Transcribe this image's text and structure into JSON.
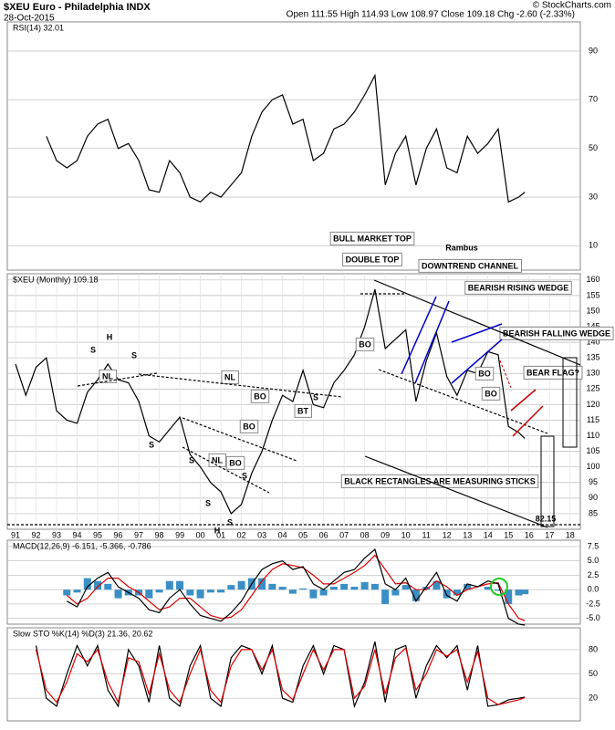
{
  "header": {
    "title": "$XEU Euro - Philadelphia INDX",
    "date": "28-Oct-2015",
    "quote": "Open 111.55  High 114.93  Low 108.97  Close 109.18  Chg -2.60 (-2.33%)",
    "source": "© StockCharts.com"
  },
  "chart_data": [
    {
      "type": "line",
      "title": "RSI(14) 32.01",
      "x": [
        1991,
        1991.5,
        1992,
        1992.5,
        1993,
        1993.5,
        1994,
        1994.5,
        1995,
        1995.5,
        1996,
        1996.5,
        1997,
        1997.5,
        1998,
        1998.5,
        1999,
        1999.5,
        2000,
        2000.5,
        2001,
        2001.5,
        2002,
        2002.5,
        2003,
        2003.5,
        2004,
        2004.5,
        2005,
        2005.5,
        2006,
        2006.5,
        2007,
        2007.5,
        2008,
        2008.5,
        2009,
        2009.5,
        2010,
        2010.5,
        2011,
        2011.5,
        2012,
        2012.5,
        2013,
        2013.5,
        2014,
        2014.5,
        2015,
        2015.5,
        2015.8
      ],
      "xlim": [
        1990.6,
        2018.5
      ],
      "series": [
        {
          "name": "RSI(14)",
          "color": "#000000",
          "values": [
            null,
            null,
            null,
            55,
            45,
            42,
            45,
            55,
            60,
            62,
            50,
            52,
            45,
            33,
            32,
            45,
            40,
            30,
            28,
            32,
            30,
            35,
            40,
            55,
            65,
            70,
            72,
            60,
            62,
            45,
            48,
            58,
            60,
            65,
            72,
            80,
            35,
            48,
            55,
            35,
            50,
            58,
            42,
            40,
            55,
            48,
            52,
            58,
            28,
            30,
            32.01
          ]
        }
      ],
      "ylim": [
        0,
        102
      ],
      "yticks": [
        10,
        30,
        50,
        70,
        90
      ],
      "grid": true
    },
    {
      "type": "line",
      "title": "$XEU (Monthly) 109.18",
      "x": [
        1991,
        1991.5,
        1992,
        1992.5,
        1993,
        1993.5,
        1994,
        1994.5,
        1995,
        1995.5,
        1996,
        1996.5,
        1997,
        1997.5,
        1998,
        1998.5,
        1999,
        1999.5,
        2000,
        2000.5,
        2001,
        2001.5,
        2002,
        2002.5,
        2003,
        2003.5,
        2004,
        2004.5,
        2005,
        2005.5,
        2006,
        2006.5,
        2007,
        2007.5,
        2008,
        2008.5,
        2009,
        2009.5,
        2010,
        2010.5,
        2011,
        2011.5,
        2012,
        2012.5,
        2013,
        2013.5,
        2014,
        2014.5,
        2015,
        2015.5,
        2015.8
      ],
      "xlim": [
        1990.6,
        2018.5
      ],
      "xticks": [
        {
          "value": 1991,
          "label": "91"
        },
        {
          "value": 1992,
          "label": "92"
        },
        {
          "value": 1993,
          "label": "93"
        },
        {
          "value": 1994,
          "label": "94"
        },
        {
          "value": 1995,
          "label": "95"
        },
        {
          "value": 1996,
          "label": "96"
        },
        {
          "value": 1997,
          "label": "97"
        },
        {
          "value": 1998,
          "label": "98"
        },
        {
          "value": 1999,
          "label": "99"
        },
        {
          "value": 2000,
          "label": "00"
        },
        {
          "value": 2001,
          "label": "01"
        },
        {
          "value": 2002,
          "label": "02"
        },
        {
          "value": 2003,
          "label": "03"
        },
        {
          "value": 2004,
          "label": "04"
        },
        {
          "value": 2005,
          "label": "05"
        },
        {
          "value": 2006,
          "label": "06"
        },
        {
          "value": 2007,
          "label": "07"
        },
        {
          "value": 2008,
          "label": "08"
        },
        {
          "value": 2009,
          "label": "09"
        },
        {
          "value": 2010,
          "label": "10"
        },
        {
          "value": 2011,
          "label": "11"
        },
        {
          "value": 2012,
          "label": "12"
        },
        {
          "value": 2013,
          "label": "13"
        },
        {
          "value": 2014,
          "label": "14"
        },
        {
          "value": 2015,
          "label": "15"
        },
        {
          "value": 2016,
          "label": "16"
        },
        {
          "value": 2017,
          "label": "17"
        },
        {
          "value": 2018,
          "label": "18"
        }
      ],
      "series": [
        {
          "name": "$XEU",
          "color": "#000000",
          "values": [
            133,
            123,
            132,
            135,
            118,
            115,
            114,
            124,
            128,
            133,
            128,
            127,
            121,
            110,
            108,
            112,
            116,
            104,
            100,
            95,
            92,
            85,
            88,
            98,
            105,
            115,
            123,
            121,
            131,
            120,
            119,
            127,
            131,
            136,
            145,
            157,
            138,
            141,
            144,
            121,
            134,
            143,
            129,
            123,
            131,
            130,
            137,
            136,
            113,
            111,
            109.18
          ]
        }
      ],
      "ylim": [
        80,
        162
      ],
      "yticks": [
        85,
        90,
        95,
        100,
        105,
        110,
        115,
        120,
        125,
        130,
        135,
        140,
        145,
        150,
        155,
        160
      ],
      "grid": true,
      "annotations": [
        {
          "text": "BULL MARKET TOP",
          "color": "#0000cc"
        },
        {
          "text": "DOUBLE TOP",
          "color": "#000000"
        },
        {
          "text": "Rambus",
          "color": "#000000"
        },
        {
          "text": "DOWNTREND CHANNEL",
          "color": "#000000"
        },
        {
          "text": "BEARISH RISING WEDGE",
          "color": "#0000cc"
        },
        {
          "text": "BEARISH FALLING WEDGE",
          "color": "#cc0000"
        },
        {
          "text": "BEAR FLAG?",
          "color": "#cc0000"
        },
        {
          "text": "BLACK RECTANGLES ARE MEASURING STICKS",
          "color": "#000000"
        },
        {
          "text": "82.15",
          "color": "#000000"
        },
        {
          "text": "H",
          "color": "#000000"
        },
        {
          "text": "S",
          "color": "#000000"
        },
        {
          "text": "S",
          "color": "#000000"
        },
        {
          "text": "NL",
          "color": "#000000"
        },
        {
          "text": "NL",
          "color": "#000000"
        },
        {
          "text": "S",
          "color": "#000000"
        },
        {
          "text": "S",
          "color": "#000000"
        },
        {
          "text": "NL",
          "color": "#000000"
        },
        {
          "text": "S",
          "color": "#000000"
        },
        {
          "text": "H",
          "color": "#000000"
        },
        {
          "text": "S",
          "color": "#000000"
        },
        {
          "text": "S",
          "color": "#000000"
        },
        {
          "text": "BO",
          "color": "#0000cc"
        },
        {
          "text": "BO",
          "color": "#0000cc"
        },
        {
          "text": "BO",
          "color": "#0000cc"
        },
        {
          "text": "BT",
          "color": "#0000cc"
        },
        {
          "text": "BO",
          "color": "#0000cc"
        },
        {
          "text": "BO",
          "color": "#0000cc"
        },
        {
          "text": "BO",
          "color": "#0000cc"
        },
        {
          "text": "S",
          "color": "#000000"
        }
      ]
    },
    {
      "type": "line",
      "title": "MACD(12,26,9) -6.151, -5.366, -0.786",
      "x": [
        1991,
        1991.5,
        1992,
        1992.5,
        1993,
        1993.5,
        1994,
        1994.5,
        1995,
        1995.5,
        1996,
        1996.5,
        1997,
        1997.5,
        1998,
        1998.5,
        1999,
        1999.5,
        2000,
        2000.5,
        2001,
        2001.5,
        2002,
        2002.5,
        2003,
        2003.5,
        2004,
        2004.5,
        2005,
        2005.5,
        2006,
        2006.5,
        2007,
        2007.5,
        2008,
        2008.5,
        2009,
        2009.5,
        2010,
        2010.5,
        2011,
        2011.5,
        2012,
        2012.5,
        2013,
        2013.5,
        2014,
        2014.5,
        2015,
        2015.5,
        2015.8
      ],
      "xlim": [
        1990.6,
        2018.5
      ],
      "series": [
        {
          "name": "Histogram",
          "type": "bar",
          "color": "#3a8fc4",
          "values": [
            null,
            null,
            null,
            null,
            null,
            -1,
            -0.5,
            2,
            1.5,
            1,
            -1.5,
            -1,
            -1,
            -1.5,
            -0.5,
            1.5,
            1.5,
            -1,
            -1.5,
            -0.5,
            -0.5,
            0.8,
            1.5,
            2,
            2,
            1,
            0.5,
            -0.7,
            0.2,
            -1.5,
            -1,
            0.5,
            1,
            0.5,
            1.3,
            1,
            -2.5,
            -1,
            0.8,
            -2,
            0.5,
            1.5,
            -1.5,
            -1,
            1,
            0,
            0.5,
            -0.2,
            -2.5,
            -1,
            -0.786
          ]
        },
        {
          "name": "Signal",
          "color": "#e00000",
          "values": [
            null,
            null,
            null,
            null,
            null,
            -1,
            -2.5,
            -1.5,
            0.5,
            2,
            2,
            0.5,
            -0.5,
            -2,
            -3.5,
            -3,
            -1.5,
            -1.5,
            -3,
            -4.5,
            -5,
            -4.8,
            -3.5,
            -1,
            1.5,
            3.5,
            4.5,
            4.2,
            3.8,
            2.5,
            1,
            1,
            2,
            3,
            4.2,
            6,
            3.5,
            1,
            1.2,
            0,
            0,
            1.5,
            0.5,
            -1,
            0,
            0.5,
            1,
            1.2,
            -2.5,
            -5,
            -5.366
          ]
        },
        {
          "name": "MACD",
          "color": "#000000",
          "values": [
            null,
            null,
            null,
            null,
            null,
            -2,
            -3,
            0.5,
            2,
            3,
            0.5,
            -0.5,
            -1.5,
            -3.5,
            -4,
            -1.5,
            0,
            -2.5,
            -4.5,
            -5,
            -5.5,
            -4,
            -2,
            1,
            3.5,
            4.5,
            5,
            3.5,
            4,
            1,
            0,
            1.5,
            3,
            3.5,
            5.5,
            7,
            1,
            0,
            2,
            -2,
            0.5,
            3,
            -1,
            -2,
            1,
            0.5,
            1.5,
            1,
            -5,
            -6,
            -6.151
          ]
        }
      ],
      "ylim": [
        -6,
        8.6
      ],
      "yticks": [
        {
          "value": 7.5,
          "label": "7.5"
        },
        {
          "value": 5,
          "label": "5.0"
        },
        {
          "value": 2.5,
          "label": "2.5"
        },
        {
          "value": 0,
          "label": "0.0"
        },
        {
          "value": -2.5,
          "label": "-2.5"
        },
        {
          "value": -5,
          "label": "-5.0"
        }
      ],
      "grid": true
    },
    {
      "type": "line",
      "title": "Slow STO %K(14) %D(3) 21.36, 20.62",
      "x": [
        1991,
        1991.5,
        1992,
        1992.5,
        1993,
        1993.5,
        1994,
        1994.5,
        1995,
        1995.5,
        1996,
        1996.5,
        1997,
        1997.5,
        1998,
        1998.5,
        1999,
        1999.5,
        2000,
        2000.5,
        2001,
        2001.5,
        2002,
        2002.5,
        2003,
        2003.5,
        2004,
        2004.5,
        2005,
        2005.5,
        2006,
        2006.5,
        2007,
        2007.5,
        2008,
        2008.5,
        2009,
        2009.5,
        2010,
        2010.5,
        2011,
        2011.5,
        2012,
        2012.5,
        2013,
        2013.5,
        2014,
        2014.5,
        2015,
        2015.5,
        2015.8
      ],
      "xlim": [
        1990.6,
        2018.5
      ],
      "series": [
        {
          "name": "%K",
          "color": "#000000",
          "values": [
            null,
            null,
            85,
            20,
            10,
            50,
            85,
            60,
            85,
            30,
            10,
            80,
            60,
            15,
            85,
            20,
            10,
            60,
            85,
            20,
            10,
            70,
            85,
            80,
            50,
            85,
            20,
            15,
            60,
            85,
            50,
            85,
            80,
            10,
            40,
            90,
            15,
            80,
            85,
            20,
            60,
            85,
            70,
            85,
            30,
            85,
            10,
            12,
            18,
            20,
            21.36
          ]
        },
        {
          "name": "%D",
          "color": "#e00000",
          "values": [
            null,
            null,
            80,
            30,
            15,
            40,
            75,
            65,
            80,
            40,
            15,
            70,
            65,
            25,
            75,
            30,
            15,
            50,
            80,
            30,
            15,
            60,
            80,
            80,
            55,
            80,
            30,
            18,
            50,
            80,
            55,
            80,
            80,
            20,
            35,
            80,
            25,
            70,
            82,
            30,
            50,
            80,
            72,
            80,
            40,
            78,
            20,
            12,
            15,
            18,
            20.62
          ]
        }
      ],
      "ylim": [
        -8,
        107
      ],
      "yticks": [
        20,
        50,
        80
      ],
      "grid": true
    }
  ]
}
